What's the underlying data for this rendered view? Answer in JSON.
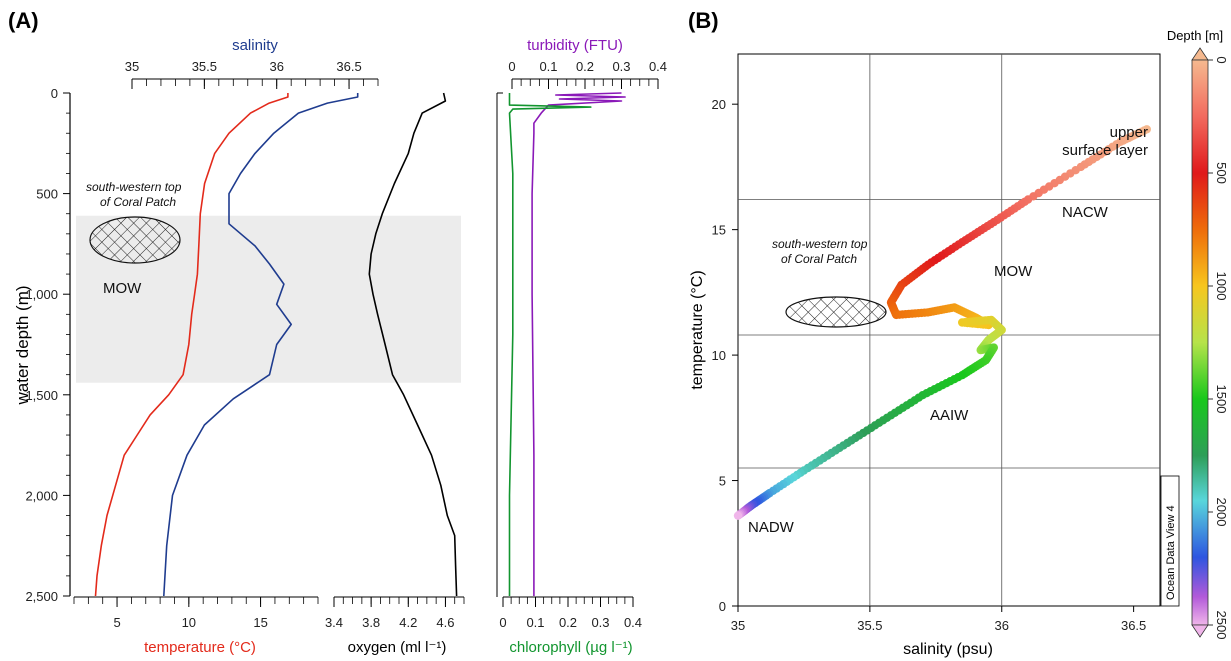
{
  "panel_a": {
    "label": "(A)",
    "y_axis": {
      "label": "water depth (m)",
      "ticks": [
        "0",
        "500",
        "1,000",
        "1,500",
        "2,000",
        "2,500"
      ],
      "range": [
        0,
        2500
      ]
    },
    "salinity_axis": {
      "title": "salinity",
      "color": "#1f3c8f",
      "ticks": [
        "35",
        "35.5",
        "36",
        "36.5"
      ],
      "range": [
        35,
        36.7
      ]
    },
    "temperature_axis": {
      "title": "temperature (°C)",
      "color": "#e32a1b",
      "ticks": [
        "5",
        "10",
        "15"
      ],
      "range": [
        2,
        19
      ]
    },
    "oxygen_axis": {
      "title": "oxygen (ml l⁻¹)",
      "color": "#000000",
      "ticks": [
        "3.4",
        "3.8",
        "4.2",
        "4.6"
      ],
      "range": [
        3.4,
        4.8
      ]
    },
    "turbidity_axis": {
      "title": "turbidity (FTU)",
      "color": "#8a19b8",
      "ticks": [
        "0",
        "0.1",
        "0.2",
        "0.3",
        "0.4"
      ],
      "range": [
        0,
        0.4
      ]
    },
    "chlorophyll_axis": {
      "title": "chlorophyll (µg l⁻¹)",
      "color": "#12952f",
      "ticks": [
        "0",
        "0.1",
        "0.2",
        "0.3",
        "0.4"
      ],
      "range": [
        0,
        0.4
      ]
    },
    "shaded_band_depth_m": [
      610,
      1440
    ],
    "annotations": {
      "coral_patch_line1": "south-western top",
      "coral_patch_line2": "of Coral Patch",
      "water_mass": "MOW"
    }
  },
  "panel_b": {
    "label": "(B)",
    "x_axis": {
      "label": "salinity (psu)",
      "ticks": [
        "35",
        "35.5",
        "36",
        "36.5"
      ],
      "range": [
        35,
        36.6
      ]
    },
    "y_axis": {
      "label": "temperature (°C)",
      "ticks": [
        "0",
        "5",
        "10",
        "15",
        "20"
      ],
      "range": [
        0,
        22
      ]
    },
    "colorbar": {
      "title": "Depth [m]",
      "ticks": [
        "0",
        "500",
        "1000",
        "1500",
        "2000",
        "2500"
      ],
      "range": [
        0,
        2500
      ]
    },
    "annotations": {
      "upper_line1": "upper",
      "upper_line2": "surface layer",
      "nacw": "NACW",
      "mow": "MOW",
      "aaiw": "AAIW",
      "nadw": "NADW",
      "coral_patch_line1": "south-western top",
      "coral_patch_line2": "of Coral Patch"
    },
    "credit": "Ocean Data View 4"
  },
  "chart_data": [
    {
      "type": "line",
      "title": "",
      "ylabel": "water depth (m)",
      "ylim": [
        0,
        2500
      ],
      "series": [
        {
          "name": "temperature (°C)",
          "axis": "temperature",
          "x": [
            16.9,
            16.9,
            15.6,
            14.3,
            12.8,
            11.8,
            11.1,
            10.8,
            10.7,
            10.6,
            10.4,
            10.2,
            10.0,
            9.6,
            8.6,
            7.3,
            6.4,
            5.5,
            4.9,
            4.3,
            3.9,
            3.6,
            3.5
          ],
          "depth": [
            0,
            20,
            50,
            100,
            200,
            300,
            450,
            600,
            750,
            900,
            1000,
            1100,
            1250,
            1400,
            1500,
            1600,
            1700,
            1800,
            1950,
            2100,
            2250,
            2400,
            2500
          ]
        },
        {
          "name": "salinity",
          "axis": "salinity",
          "x": [
            36.56,
            36.56,
            36.35,
            36.15,
            35.98,
            35.85,
            35.75,
            35.67,
            35.67,
            35.85,
            35.95,
            36.05,
            36.0,
            36.1,
            36.0,
            35.95,
            35.7,
            35.5,
            35.38,
            35.28,
            35.24,
            35.22
          ],
          "depth": [
            0,
            20,
            50,
            100,
            200,
            300,
            400,
            500,
            650,
            760,
            850,
            950,
            1050,
            1150,
            1250,
            1400,
            1520,
            1650,
            1800,
            2000,
            2250,
            2500
          ]
        },
        {
          "name": "oxygen (ml l⁻¹)",
          "axis": "oxygen",
          "x": [
            4.58,
            4.6,
            4.35,
            4.26,
            4.2,
            4.05,
            3.92,
            3.85,
            3.8,
            3.78,
            3.82,
            3.87,
            3.95,
            4.03,
            4.15,
            4.3,
            4.45,
            4.55,
            4.62,
            4.7,
            4.71,
            4.72
          ],
          "depth": [
            0,
            40,
            100,
            200,
            300,
            450,
            600,
            700,
            800,
            900,
            1000,
            1100,
            1250,
            1400,
            1500,
            1650,
            1800,
            1950,
            2100,
            2200,
            2350,
            2500
          ]
        },
        {
          "name": "turbidity (FTU)",
          "axis": "turbidity",
          "x": [
            0.3,
            0.12,
            0.31,
            0.13,
            0.3,
            0.1,
            0.08,
            0.06,
            0.06,
            0.055,
            0.055,
            0.06,
            0.06
          ],
          "depth": [
            0,
            10,
            20,
            30,
            40,
            60,
            100,
            150,
            200,
            500,
            1000,
            1800,
            2500
          ]
        },
        {
          "name": "chlorophyll (µg l⁻¹)",
          "axis": "chlorophyll",
          "x": [
            0.02,
            0.02,
            0.27,
            0.03,
            0.02,
            0.03,
            0.03,
            0.02,
            0.02
          ],
          "depth": [
            0,
            60,
            70,
            80,
            100,
            400,
            1200,
            2000,
            2500
          ]
        }
      ]
    },
    {
      "type": "scatter",
      "title": "",
      "xlabel": "salinity (psu)",
      "ylabel": "temperature (°C)",
      "xlim": [
        35,
        36.6
      ],
      "ylim": [
        0,
        22
      ],
      "color_variable": "Depth [m]",
      "points": [
        {
          "s": 36.55,
          "t": 19.0,
          "depth": 0
        },
        {
          "s": 36.45,
          "t": 18.5,
          "depth": 50
        },
        {
          "s": 36.3,
          "t": 17.5,
          "depth": 120
        },
        {
          "s": 36.1,
          "t": 16.2,
          "depth": 220
        },
        {
          "s": 35.97,
          "t": 15.3,
          "depth": 320
        },
        {
          "s": 35.85,
          "t": 14.5,
          "depth": 420
        },
        {
          "s": 35.72,
          "t": 13.6,
          "depth": 520
        },
        {
          "s": 35.62,
          "t": 12.8,
          "depth": 620
        },
        {
          "s": 35.58,
          "t": 12.1,
          "depth": 700
        },
        {
          "s": 35.6,
          "t": 11.6,
          "depth": 760
        },
        {
          "s": 35.72,
          "t": 11.7,
          "depth": 820
        },
        {
          "s": 35.82,
          "t": 11.9,
          "depth": 880
        },
        {
          "s": 35.9,
          "t": 11.5,
          "depth": 940
        },
        {
          "s": 35.95,
          "t": 11.2,
          "depth": 990
        },
        {
          "s": 35.85,
          "t": 11.3,
          "depth": 1030
        },
        {
          "s": 35.96,
          "t": 11.4,
          "depth": 1080
        },
        {
          "s": 36.0,
          "t": 11.0,
          "depth": 1150
        },
        {
          "s": 35.95,
          "t": 10.6,
          "depth": 1220
        },
        {
          "s": 35.92,
          "t": 10.2,
          "depth": 1300
        },
        {
          "s": 35.97,
          "t": 10.3,
          "depth": 1380
        },
        {
          "s": 35.94,
          "t": 9.8,
          "depth": 1440
        },
        {
          "s": 35.85,
          "t": 9.2,
          "depth": 1500
        },
        {
          "s": 35.7,
          "t": 8.4,
          "depth": 1600
        },
        {
          "s": 35.55,
          "t": 7.4,
          "depth": 1700
        },
        {
          "s": 35.4,
          "t": 6.4,
          "depth": 1800
        },
        {
          "s": 35.25,
          "t": 5.4,
          "depth": 1900
        },
        {
          "s": 35.12,
          "t": 4.5,
          "depth": 2050
        },
        {
          "s": 35.05,
          "t": 4.0,
          "depth": 2250
        },
        {
          "s": 35.0,
          "t": 3.6,
          "depth": 2500
        }
      ]
    }
  ]
}
